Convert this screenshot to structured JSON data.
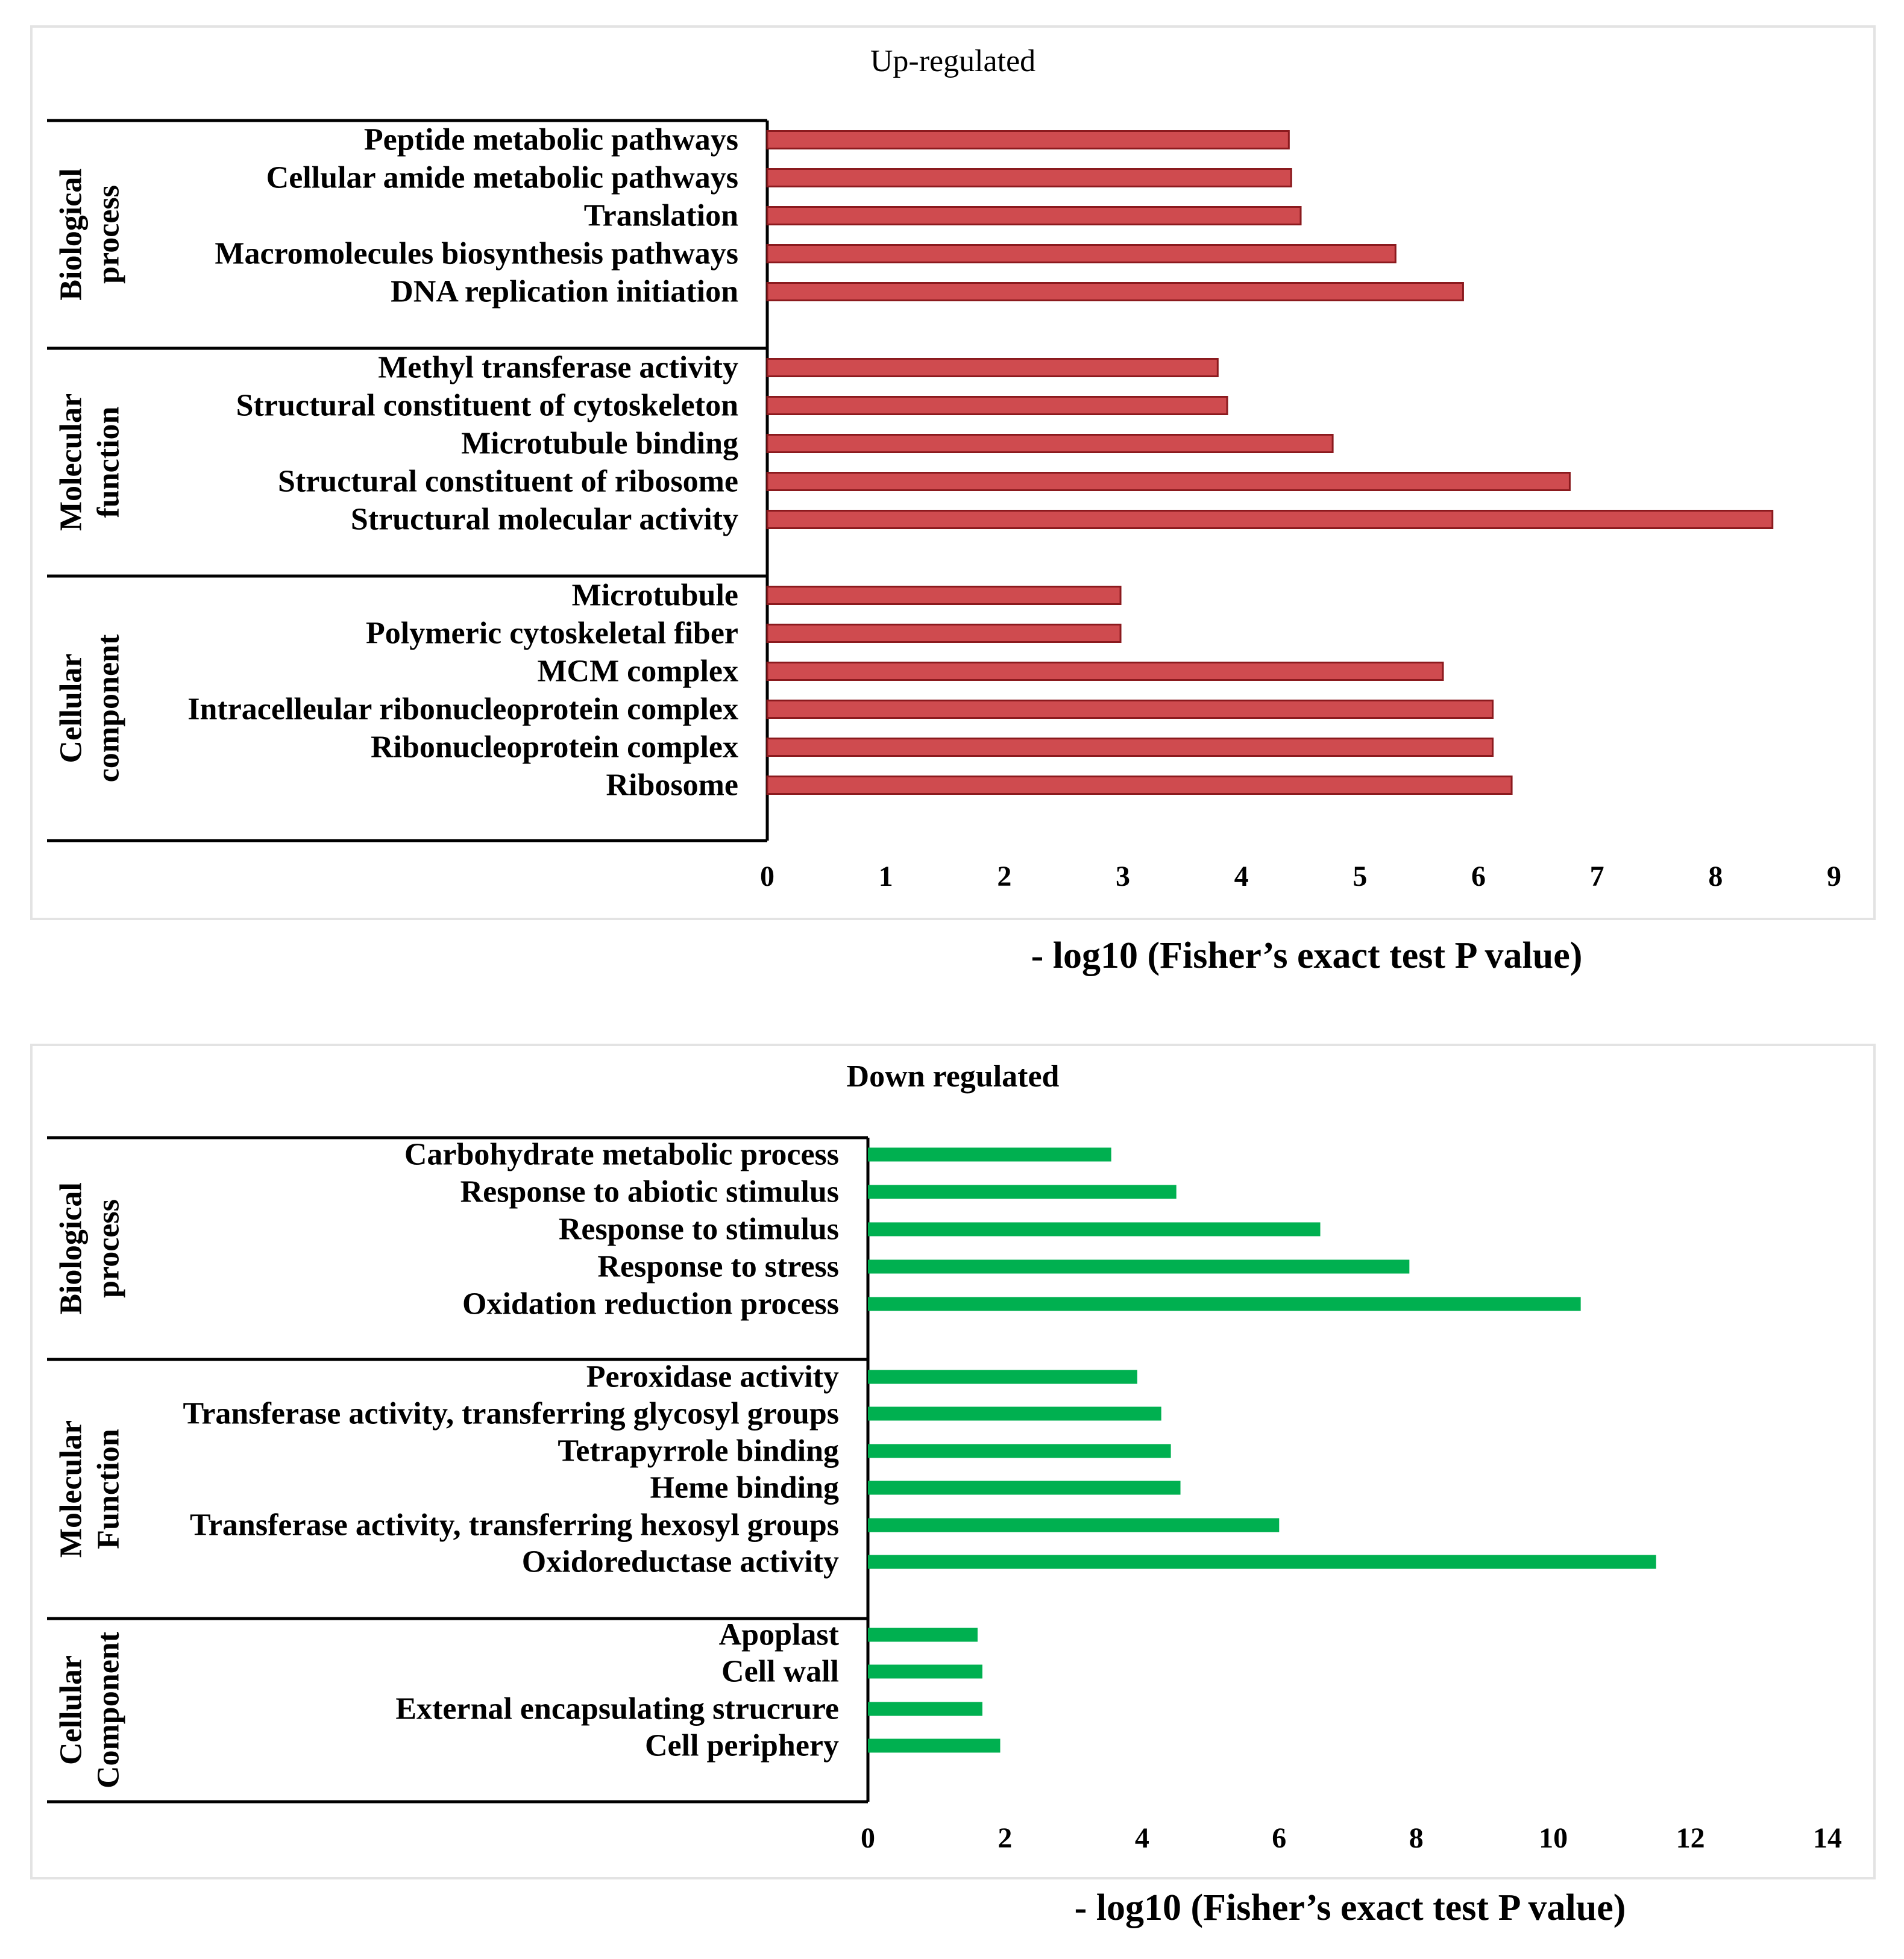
{
  "charts": [
    {
      "title": "Up-regulated",
      "xlabel": "- log10 (Fisher’s exact test P value)",
      "bar_color": "#cf4b4f",
      "bar_edge": "#8b1a1e",
      "groups": [
        {
          "label_lines": [
            "Biological",
            "process"
          ]
        },
        {
          "label_lines": [
            "Molecular",
            "function"
          ]
        },
        {
          "label_lines": [
            "Cellular",
            "component"
          ]
        }
      ]
    },
    {
      "title": "Down regulated",
      "xlabel": "- log10 (Fisher’s exact test P value)",
      "bar_color": "#00b050",
      "bar_edge": "#00b050",
      "groups": [
        {
          "label_lines": [
            "Biological",
            "process"
          ]
        },
        {
          "label_lines": [
            "Molecular",
            "Function"
          ]
        },
        {
          "label_lines": [
            "Cellular",
            "Component"
          ]
        }
      ]
    }
  ],
  "chart_data": [
    {
      "type": "bar",
      "orientation": "horizontal",
      "title": "Up-regulated",
      "xlabel": "- log10 (Fisher’s exact test P value)",
      "xlim": [
        0,
        9
      ],
      "xticks": [
        0,
        1,
        2,
        3,
        4,
        5,
        6,
        7,
        8,
        9
      ],
      "groups": [
        {
          "name": "Biological process",
          "categories": [
            "Peptide metabolic pathways",
            "Cellular amide metabolic pathways",
            "Translation",
            "Macromolecules biosynthesis pathways",
            "DNA replication initiation"
          ],
          "values": [
            4.4,
            4.42,
            4.5,
            5.3,
            5.87
          ]
        },
        {
          "name": "Molecular function",
          "categories": [
            "Methyl transferase activity",
            "Structural constituent of cytoskeleton",
            "Microtubule binding",
            "Structural constituent of ribosome",
            "Structural molecular activity"
          ],
          "values": [
            3.8,
            3.88,
            4.77,
            6.77,
            8.48
          ]
        },
        {
          "name": "Cellular component",
          "categories": [
            "Microtubule",
            "Polymeric cytoskeletal fiber",
            "MCM complex",
            "Intracelleular ribonucleoprotein complex",
            "Ribonucleoprotein complex",
            "Ribosome"
          ],
          "values": [
            2.98,
            2.98,
            5.7,
            6.12,
            6.12,
            6.28
          ]
        }
      ]
    },
    {
      "type": "bar",
      "orientation": "horizontal",
      "title": "Down regulated",
      "xlabel": "- log10 (Fisher’s exact test P value)",
      "xlim": [
        0,
        14
      ],
      "xticks": [
        0,
        2,
        4,
        6,
        8,
        10,
        12,
        14
      ],
      "groups": [
        {
          "name": "Biological process",
          "categories": [
            "Carbohydrate metabolic process",
            "Response to abiotic stimulus",
            "Response to stimulus",
            "Response to stress",
            "Oxidation reduction process"
          ],
          "values": [
            3.55,
            4.5,
            6.6,
            7.9,
            10.4
          ]
        },
        {
          "name": "Molecular Function",
          "categories": [
            "Peroxidase activity",
            "Transferase activity, transferring glycosyl groups",
            "Tetrapyrrole binding",
            "Heme binding",
            "Transferase activity, transferring hexosyl groups",
            "Oxidoreductase activity"
          ],
          "values": [
            3.93,
            4.28,
            4.42,
            4.56,
            6.0,
            11.5
          ]
        },
        {
          "name": "Cellular Component",
          "categories": [
            "Apoplast",
            "Cell wall",
            "External encapsulating strucrure",
            "Cell periphery"
          ],
          "values": [
            1.6,
            1.67,
            1.67,
            1.93
          ]
        }
      ]
    }
  ]
}
